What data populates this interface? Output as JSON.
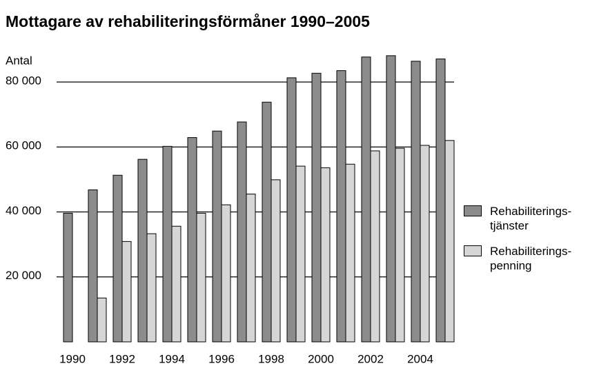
{
  "chart_data": {
    "type": "bar",
    "title": "Mottagare av rehabiliteringsförmåner 1990–2005",
    "y_axis_label": "Antal",
    "categories": [
      "1990",
      null,
      "1992",
      null,
      "1994",
      null,
      "1996",
      null,
      "1998",
      null,
      "2000",
      null,
      "2002",
      null,
      "2004",
      null
    ],
    "series": [
      {
        "name": "Rehabiliterings-\ntjänster",
        "color": "#8c8c8c",
        "values": [
          39600,
          46800,
          51300,
          56200,
          60200,
          62900,
          64900,
          67700,
          73800,
          81300,
          82700,
          83500,
          87700,
          88100,
          86400,
          87100
        ]
      },
      {
        "name": "Rehabiliterings-\npenning",
        "color": "#d6d6d6",
        "values": [
          null,
          13500,
          30900,
          33300,
          35600,
          39600,
          42200,
          45500,
          49900,
          54100,
          53600,
          54700,
          58800,
          59600,
          60500,
          62000
        ]
      }
    ],
    "ylim": [
      0,
      90000
    ],
    "yticks": [
      {
        "value": 20000,
        "label": "20 000"
      },
      {
        "value": 40000,
        "label": "40 000"
      },
      {
        "value": 60000,
        "label": "60 000"
      },
      {
        "value": 80000,
        "label": "80 000"
      }
    ],
    "grid": true,
    "legend": "right"
  }
}
